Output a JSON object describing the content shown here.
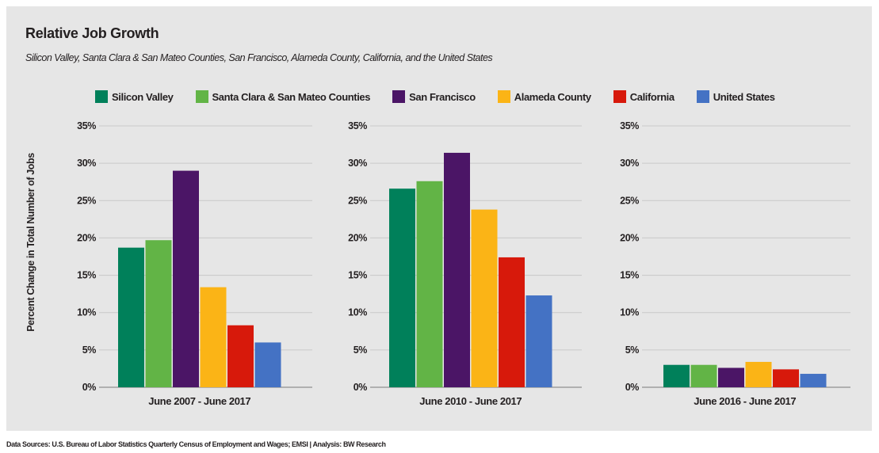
{
  "chart_data": {
    "type": "bar",
    "title": "Relative Job Growth",
    "subtitle": "Silicon Valley, Santa Clara & San Mateo Counties, San Francisco, Alameda County, California, and the United States",
    "ylabel": "Percent Change in Total Number of Jobs",
    "xlabel": "",
    "ylim": [
      0,
      35
    ],
    "yticks": [
      "0%",
      "5%",
      "10%",
      "15%",
      "20%",
      "25%",
      "30%",
      "35%"
    ],
    "ytick_values": [
      0,
      5,
      10,
      15,
      20,
      25,
      30,
      35
    ],
    "grid": true,
    "legend_position": "top",
    "categories": [
      "June 2007 - June 2017",
      "June 2010 - June 2017",
      "June 2016 - June 2017"
    ],
    "series": [
      {
        "name": "Silicon Valley",
        "color": "#00805a",
        "values": [
          18.7,
          26.6,
          3.0
        ]
      },
      {
        "name": "Santa Clara & San Mateo Counties",
        "color": "#62b446",
        "values": [
          19.7,
          27.6,
          3.0
        ]
      },
      {
        "name": "San Francisco",
        "color": "#4b1566",
        "values": [
          29.0,
          31.4,
          2.6
        ]
      },
      {
        "name": "Alameda County",
        "color": "#fbb416",
        "values": [
          13.4,
          23.8,
          3.4
        ]
      },
      {
        "name": "California",
        "color": "#d7190b",
        "values": [
          8.3,
          17.4,
          2.4
        ]
      },
      {
        "name": "United States",
        "color": "#4472c4",
        "values": [
          6.0,
          12.3,
          1.8
        ]
      }
    ]
  },
  "footnote": "Data Sources: U.S. Bureau of Labor Statistics Quarterly Census of Employment and Wages; EMSI | Analysis: BW Research"
}
